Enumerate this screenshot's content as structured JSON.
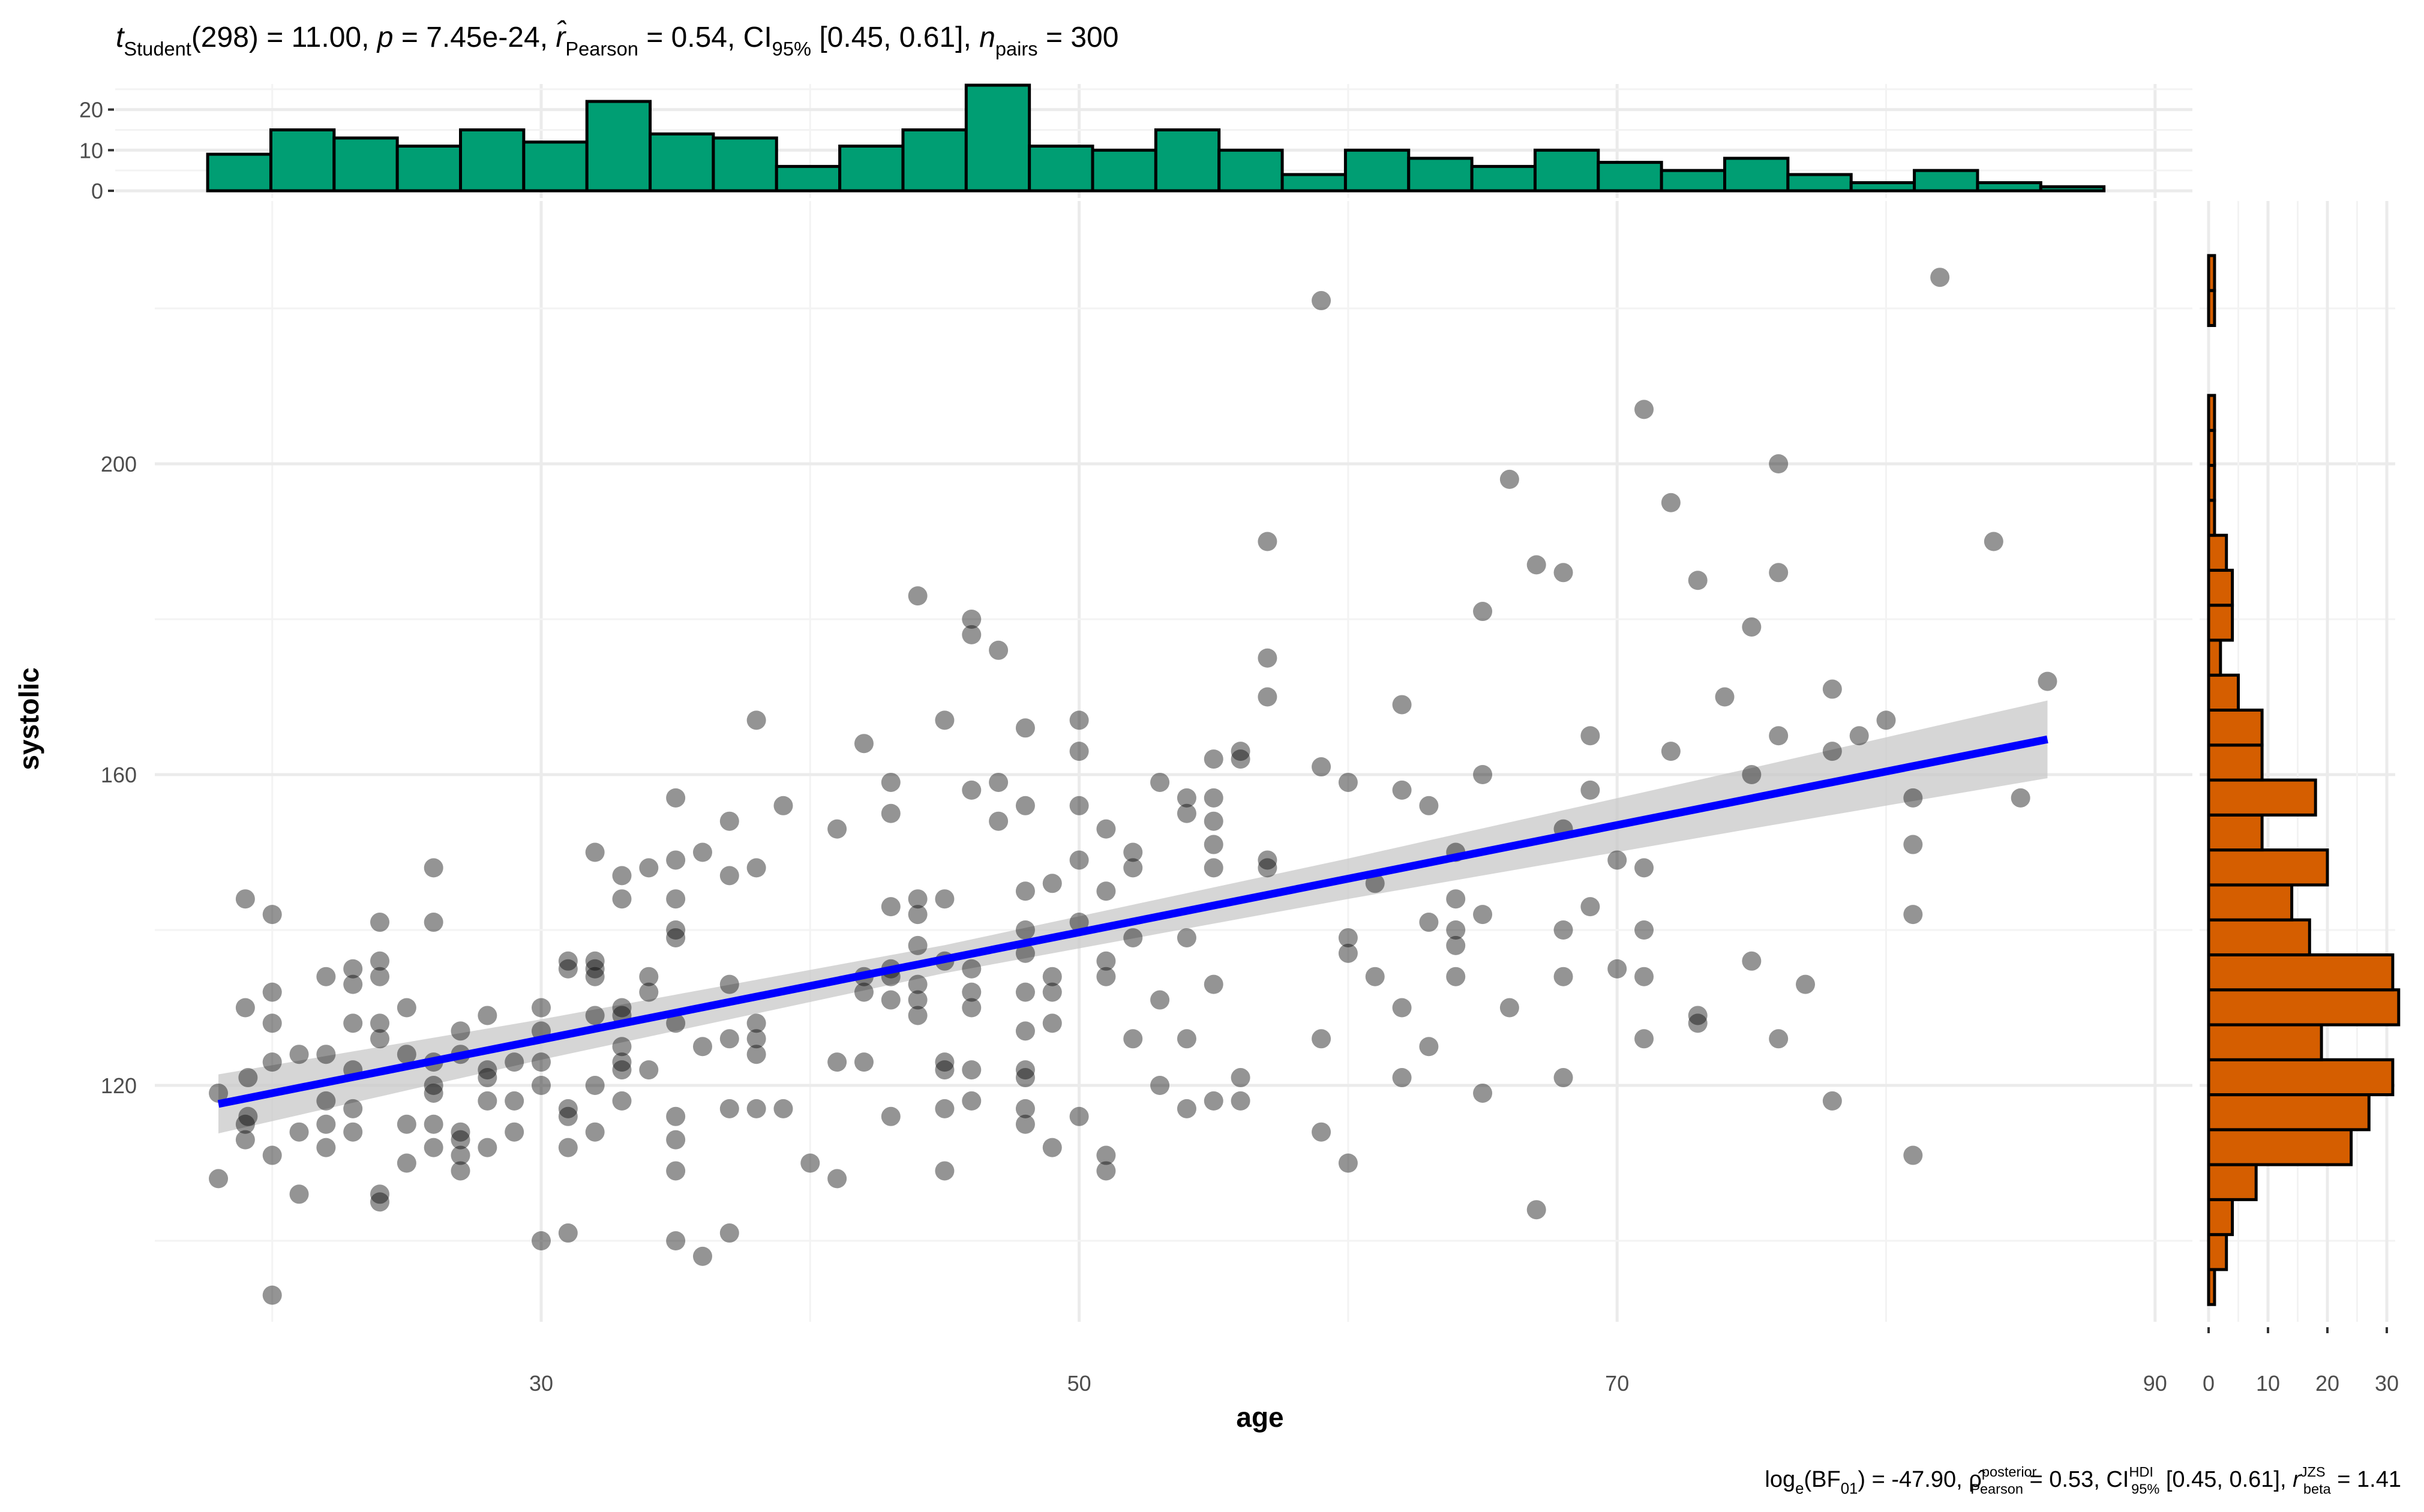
{
  "chart_data": {
    "type": "scatter",
    "title_segments": [
      {
        "t": "t",
        "s": "i"
      },
      {
        "t": "Student",
        "s": "sub"
      },
      {
        "t": "(298) = 11.00, ",
        "s": "n"
      },
      {
        "t": "p",
        "s": "i"
      },
      {
        "t": " = 7.45e-24, ",
        "s": "n"
      },
      {
        "t": "r̂",
        "s": "i"
      },
      {
        "t": "Pearson",
        "s": "sub"
      },
      {
        "t": " = 0.54, CI",
        "s": "n"
      },
      {
        "t": "95%",
        "s": "sub"
      },
      {
        "t": " [0.45, 0.61], ",
        "s": "n"
      },
      {
        "t": "n",
        "s": "i"
      },
      {
        "t": "pairs",
        "s": "sub"
      },
      {
        "t": " = 300",
        "s": "n"
      }
    ],
    "caption_segments": [
      {
        "t": "log",
        "s": "n"
      },
      {
        "t": "e",
        "s": "sub"
      },
      {
        "t": "(BF",
        "s": "n"
      },
      {
        "t": "01",
        "s": "sub"
      },
      {
        "t": ") = -47.90, ",
        "s": "n"
      },
      {
        "t": "ρ̂",
        "s": "n"
      },
      {
        "sup": "posterior",
        "sub": "Pearson",
        "s": "subsup"
      },
      {
        "t": " = 0.53, CI",
        "s": "n"
      },
      {
        "sup": "HDI",
        "sub": "95%",
        "s": "subsup"
      },
      {
        "t": " [0.45, 0.61], ",
        "s": "n"
      },
      {
        "t": "r",
        "s": "i"
      },
      {
        "sup": "JZS",
        "sub": "beta",
        "s": "subsup"
      },
      {
        "t": " = 1.41",
        "s": "n"
      }
    ],
    "xlabel": "age",
    "ylabel": "systolic",
    "xlim": [
      15.6,
      91.5
    ],
    "ylim": [
      89.7,
      233.7
    ],
    "x_ticks": [
      30,
      50,
      70,
      90
    ],
    "x_minor": [
      20,
      40,
      60,
      80
    ],
    "y_ticks": [
      120,
      160,
      200
    ],
    "y_minor": [
      100,
      140,
      180,
      220
    ],
    "grid": true,
    "colors": {
      "points": "#000000",
      "line": "#0000FF",
      "band": "#C8C8C8",
      "top_hist": "#009E73",
      "right_hist": "#D55E00",
      "grid": "#EBEBEB"
    },
    "regression": {
      "intercept": 105.2,
      "slope": 0.69,
      "x_range": [
        18,
        86
      ],
      "ci_half_width_at": [
        [
          18,
          3.8
        ],
        [
          30,
          2.6
        ],
        [
          45,
          1.8
        ],
        [
          60,
          2.6
        ],
        [
          75,
          3.9
        ],
        [
          86,
          5.0
        ]
      ]
    },
    "points": [
      [
        18,
        119
      ],
      [
        18,
        108
      ],
      [
        19,
        144
      ],
      [
        19,
        130
      ],
      [
        19.1,
        121
      ],
      [
        19.1,
        116
      ],
      [
        19,
        115
      ],
      [
        19,
        113
      ],
      [
        20,
        142
      ],
      [
        20,
        132
      ],
      [
        20,
        128
      ],
      [
        20,
        123
      ],
      [
        20,
        111
      ],
      [
        20,
        93
      ],
      [
        21,
        124
      ],
      [
        21,
        114
      ],
      [
        21,
        106
      ],
      [
        22,
        134
      ],
      [
        22,
        124
      ],
      [
        22,
        118
      ],
      [
        22,
        115
      ],
      [
        22,
        112
      ],
      [
        23,
        135
      ],
      [
        23,
        133
      ],
      [
        23,
        128
      ],
      [
        23,
        122
      ],
      [
        23,
        117
      ],
      [
        23,
        114
      ],
      [
        24,
        141
      ],
      [
        24,
        136
      ],
      [
        24,
        134
      ],
      [
        24,
        128
      ],
      [
        24,
        126
      ],
      [
        24,
        106
      ],
      [
        24,
        105
      ],
      [
        25,
        130
      ],
      [
        25,
        124
      ],
      [
        25,
        115
      ],
      [
        25,
        110
      ],
      [
        26,
        148
      ],
      [
        26,
        141
      ],
      [
        26,
        123
      ],
      [
        26,
        120
      ],
      [
        26,
        119
      ],
      [
        26,
        115
      ],
      [
        26,
        112
      ],
      [
        27,
        127
      ],
      [
        27,
        124
      ],
      [
        27,
        114
      ],
      [
        27,
        113
      ],
      [
        27,
        111
      ],
      [
        27,
        109
      ],
      [
        28,
        129
      ],
      [
        28,
        122
      ],
      [
        28,
        121
      ],
      [
        28,
        118
      ],
      [
        28,
        112
      ],
      [
        29,
        123
      ],
      [
        29,
        118
      ],
      [
        29,
        114
      ],
      [
        30,
        130
      ],
      [
        30,
        127
      ],
      [
        30,
        123
      ],
      [
        30,
        120
      ],
      [
        30,
        100
      ],
      [
        31,
        136
      ],
      [
        31,
        135
      ],
      [
        31,
        117
      ],
      [
        31,
        116
      ],
      [
        31,
        112
      ],
      [
        31,
        101
      ],
      [
        32,
        150
      ],
      [
        32,
        136
      ],
      [
        32,
        135
      ],
      [
        32,
        134
      ],
      [
        32,
        129
      ],
      [
        32,
        120
      ],
      [
        32,
        114
      ],
      [
        33,
        147
      ],
      [
        33,
        144
      ],
      [
        33,
        130
      ],
      [
        33,
        129
      ],
      [
        33,
        125
      ],
      [
        33,
        123
      ],
      [
        33,
        122
      ],
      [
        33,
        118
      ],
      [
        34,
        148
      ],
      [
        34,
        134
      ],
      [
        34,
        132
      ],
      [
        34,
        122
      ],
      [
        35,
        157
      ],
      [
        35,
        149
      ],
      [
        35,
        144
      ],
      [
        35,
        140
      ],
      [
        35,
        139
      ],
      [
        35,
        128
      ],
      [
        35,
        116
      ],
      [
        35,
        113
      ],
      [
        35,
        109
      ],
      [
        35,
        100
      ],
      [
        36,
        150
      ],
      [
        36,
        125
      ],
      [
        36,
        98
      ],
      [
        37,
        154
      ],
      [
        37,
        147
      ],
      [
        37,
        133
      ],
      [
        37,
        126
      ],
      [
        37,
        117
      ],
      [
        37,
        101
      ],
      [
        38,
        167
      ],
      [
        38,
        148
      ],
      [
        38,
        128
      ],
      [
        38,
        126
      ],
      [
        38,
        124
      ],
      [
        38,
        117
      ],
      [
        39,
        156
      ],
      [
        39,
        117
      ],
      [
        40,
        110
      ],
      [
        41,
        153
      ],
      [
        41,
        123
      ],
      [
        41,
        108
      ],
      [
        42,
        164
      ],
      [
        42,
        134
      ],
      [
        42,
        132
      ],
      [
        42,
        123
      ],
      [
        43,
        159
      ],
      [
        43,
        155
      ],
      [
        43,
        143
      ],
      [
        43,
        135
      ],
      [
        43,
        134
      ],
      [
        43,
        131
      ],
      [
        43,
        116
      ],
      [
        44,
        183
      ],
      [
        44,
        144
      ],
      [
        44,
        142
      ],
      [
        44,
        138
      ],
      [
        44,
        133
      ],
      [
        44,
        131
      ],
      [
        44,
        129
      ],
      [
        45,
        167
      ],
      [
        45,
        144
      ],
      [
        45,
        136
      ],
      [
        45,
        123
      ],
      [
        45,
        122
      ],
      [
        45,
        117
      ],
      [
        45,
        109
      ],
      [
        46,
        180
      ],
      [
        46,
        178
      ],
      [
        46,
        158
      ],
      [
        46,
        135
      ],
      [
        46,
        132
      ],
      [
        46,
        130
      ],
      [
        46,
        122
      ],
      [
        46,
        118
      ],
      [
        47,
        176
      ],
      [
        47,
        159
      ],
      [
        47,
        154
      ],
      [
        48,
        166
      ],
      [
        48,
        156
      ],
      [
        48,
        145
      ],
      [
        48,
        140
      ],
      [
        48,
        137
      ],
      [
        48,
        132
      ],
      [
        48,
        127
      ],
      [
        48,
        122
      ],
      [
        48,
        121
      ],
      [
        48,
        117
      ],
      [
        48,
        115
      ],
      [
        49,
        146
      ],
      [
        49,
        134
      ],
      [
        49,
        132
      ],
      [
        49,
        128
      ],
      [
        49,
        112
      ],
      [
        50,
        167
      ],
      [
        50,
        163
      ],
      [
        50,
        156
      ],
      [
        50,
        149
      ],
      [
        50,
        141
      ],
      [
        50,
        116
      ],
      [
        51,
        153
      ],
      [
        51,
        145
      ],
      [
        51,
        136
      ],
      [
        51,
        134
      ],
      [
        51,
        111
      ],
      [
        51,
        109
      ],
      [
        52,
        150
      ],
      [
        52,
        148
      ],
      [
        52,
        139
      ],
      [
        52,
        126
      ],
      [
        53,
        159
      ],
      [
        53,
        131
      ],
      [
        53,
        120
      ],
      [
        54,
        157
      ],
      [
        54,
        155
      ],
      [
        54,
        139
      ],
      [
        54,
        126
      ],
      [
        54,
        117
      ],
      [
        55,
        162
      ],
      [
        55,
        157
      ],
      [
        55,
        154
      ],
      [
        55,
        151
      ],
      [
        55,
        148
      ],
      [
        55,
        133
      ],
      [
        55,
        118
      ],
      [
        56,
        163
      ],
      [
        56,
        162
      ],
      [
        56,
        121
      ],
      [
        56,
        118
      ],
      [
        57,
        190
      ],
      [
        57,
        175
      ],
      [
        57,
        170
      ],
      [
        57,
        149
      ],
      [
        57,
        148
      ],
      [
        59,
        221
      ],
      [
        59,
        161
      ],
      [
        59,
        126
      ],
      [
        59,
        114
      ],
      [
        60,
        159
      ],
      [
        60,
        139
      ],
      [
        60,
        137
      ],
      [
        60,
        110
      ],
      [
        61,
        134
      ],
      [
        61,
        146
      ],
      [
        62,
        169
      ],
      [
        62,
        158
      ],
      [
        62,
        130
      ],
      [
        62,
        121
      ],
      [
        63,
        156
      ],
      [
        63,
        141
      ],
      [
        63,
        125
      ],
      [
        64,
        150
      ],
      [
        64,
        144
      ],
      [
        64,
        140
      ],
      [
        64,
        138
      ],
      [
        64,
        134
      ],
      [
        65,
        181
      ],
      [
        65,
        160
      ],
      [
        65,
        142
      ],
      [
        65,
        119
      ],
      [
        66,
        198
      ],
      [
        66,
        130
      ],
      [
        67,
        187
      ],
      [
        67,
        104
      ],
      [
        68,
        186
      ],
      [
        68,
        153
      ],
      [
        68,
        140
      ],
      [
        68,
        134
      ],
      [
        68,
        121
      ],
      [
        69,
        165
      ],
      [
        69,
        158
      ],
      [
        69,
        143
      ],
      [
        70,
        149
      ],
      [
        70,
        135
      ],
      [
        71,
        207
      ],
      [
        71,
        148
      ],
      [
        71,
        140
      ],
      [
        71,
        134
      ],
      [
        71,
        126
      ],
      [
        72,
        195
      ],
      [
        72,
        163
      ],
      [
        73,
        185
      ],
      [
        73,
        129
      ],
      [
        73,
        128
      ],
      [
        74,
        170
      ],
      [
        75,
        179
      ],
      [
        75,
        160
      ],
      [
        75,
        136
      ],
      [
        76,
        200
      ],
      [
        76,
        186
      ],
      [
        76,
        165
      ],
      [
        76,
        126
      ],
      [
        77,
        133
      ],
      [
        78,
        171
      ],
      [
        78,
        163
      ],
      [
        78,
        118
      ],
      [
        79,
        165
      ],
      [
        80,
        167
      ],
      [
        81,
        157
      ],
      [
        81,
        151
      ],
      [
        81,
        142
      ],
      [
        81,
        111
      ],
      [
        82,
        224
      ],
      [
        84,
        190
      ],
      [
        85,
        157
      ],
      [
        86,
        172
      ]
    ],
    "top_histogram": {
      "variable": "age",
      "bin_start": 17.6,
      "bin_width": 2.35,
      "counts": [
        9,
        15,
        13,
        11,
        15,
        12,
        22,
        14,
        13,
        6,
        11,
        15,
        26,
        11,
        10,
        15,
        10,
        4,
        10,
        8,
        6,
        10,
        7,
        5,
        8,
        4,
        2,
        5,
        2,
        1
      ],
      "y_ticks": [
        0,
        10,
        20
      ],
      "ylim": [
        0,
        28
      ]
    },
    "right_histogram": {
      "variable": "systolic",
      "bin_start": 91.8,
      "bin_width": 4.5,
      "counts_bottom_to_top": [
        1,
        3,
        4,
        8,
        24,
        27,
        31,
        19,
        32,
        31,
        17,
        14,
        20,
        9,
        18,
        9,
        9,
        5,
        2,
        4,
        4,
        3,
        1,
        1,
        1,
        1,
        0,
        0,
        1,
        1
      ],
      "x_ticks": [
        0,
        10,
        20,
        30
      ],
      "xlim": [
        0,
        32
      ]
    }
  }
}
